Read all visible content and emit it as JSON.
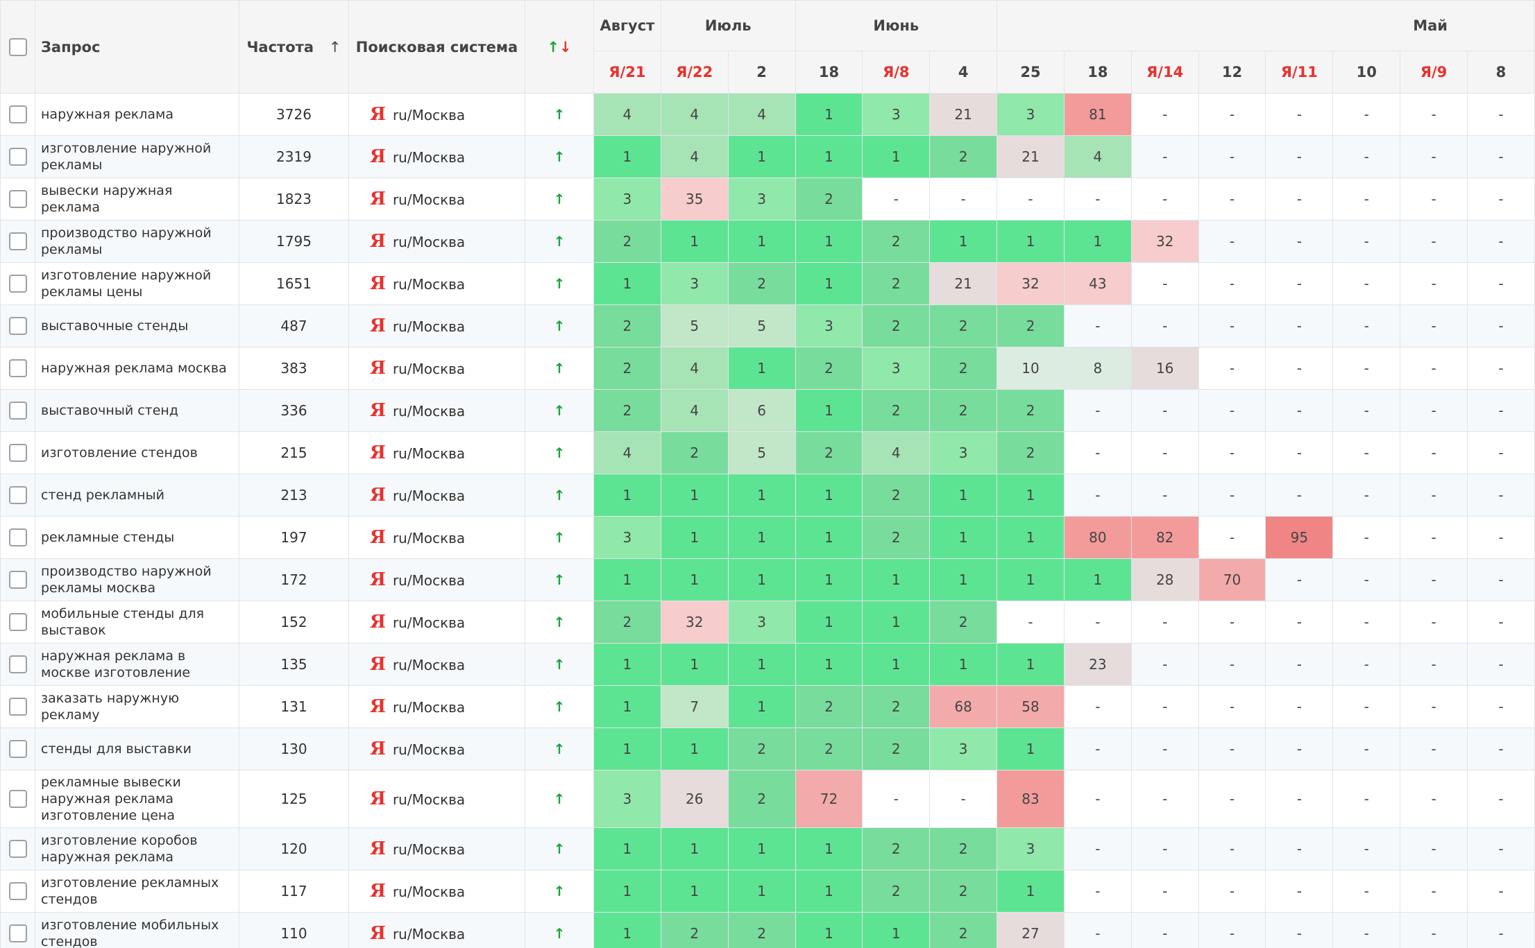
{
  "header": {
    "query": "Запрос",
    "frequency": "Частота",
    "sort_arrow": "↑",
    "engine": "Поисковая система",
    "trend_up": "↑",
    "trend_down": "↓",
    "months": [
      "Август",
      "Июль",
      "Июнь",
      "Май"
    ],
    "dates": [
      "Я/21",
      "Я/22",
      "2",
      "18",
      "Я/8",
      "4",
      "25",
      "18",
      "Я/14",
      "12",
      "Я/11",
      "10",
      "Я/9",
      "8"
    ]
  },
  "rows": [
    {
      "query": "наружная реклама",
      "frequency": 3726,
      "icon": "Я",
      "region": "ru/Москва",
      "trend": "↑",
      "positions": [
        4,
        4,
        4,
        1,
        3,
        21,
        3,
        81,
        "-",
        "-",
        "-",
        "-",
        "-",
        "-"
      ]
    },
    {
      "query": "изготовление наружной рекламы",
      "frequency": 2319,
      "icon": "Я",
      "region": "ru/Москва",
      "trend": "↑",
      "positions": [
        1,
        4,
        1,
        1,
        1,
        2,
        21,
        4,
        "-",
        "-",
        "-",
        "-",
        "-",
        "-"
      ]
    },
    {
      "query": "вывески наружная реклама",
      "frequency": 1823,
      "icon": "Я",
      "region": "ru/Москва",
      "trend": "↑",
      "positions": [
        3,
        35,
        3,
        2,
        "-",
        "-",
        "-",
        "-",
        "-",
        "-",
        "-",
        "-",
        "-",
        "-"
      ]
    },
    {
      "query": "производство наружной рекламы",
      "frequency": 1795,
      "icon": "Я",
      "region": "ru/Москва",
      "trend": "↑",
      "positions": [
        2,
        1,
        1,
        1,
        2,
        1,
        1,
        1,
        32,
        "-",
        "-",
        "-",
        "-",
        "-"
      ]
    },
    {
      "query": "изготовление наружной рекламы цены",
      "frequency": 1651,
      "icon": "Я",
      "region": "ru/Москва",
      "trend": "↑",
      "positions": [
        1,
        3,
        2,
        1,
        2,
        21,
        32,
        43,
        "-",
        "-",
        "-",
        "-",
        "-",
        "-"
      ]
    },
    {
      "query": "выставочные стенды",
      "frequency": 487,
      "icon": "Я",
      "region": "ru/Москва",
      "trend": "↑",
      "positions": [
        2,
        5,
        5,
        3,
        2,
        2,
        2,
        "-",
        "-",
        "-",
        "-",
        "-",
        "-",
        "-"
      ]
    },
    {
      "query": "наружная реклама москва",
      "frequency": 383,
      "icon": "Я",
      "region": "ru/Москва",
      "trend": "↑",
      "positions": [
        2,
        4,
        1,
        2,
        3,
        2,
        10,
        8,
        16,
        "-",
        "-",
        "-",
        "-",
        "-"
      ]
    },
    {
      "query": "выставочный стенд",
      "frequency": 336,
      "icon": "Я",
      "region": "ru/Москва",
      "trend": "↑",
      "positions": [
        2,
        4,
        6,
        1,
        2,
        2,
        2,
        "-",
        "-",
        "-",
        "-",
        "-",
        "-",
        "-"
      ]
    },
    {
      "query": "изготовление стендов",
      "frequency": 215,
      "icon": "Я",
      "region": "ru/Москва",
      "trend": "↑",
      "positions": [
        4,
        2,
        5,
        2,
        4,
        3,
        2,
        "-",
        "-",
        "-",
        "-",
        "-",
        "-",
        "-"
      ]
    },
    {
      "query": "стенд рекламный",
      "frequency": 213,
      "icon": "Я",
      "region": "ru/Москва",
      "trend": "↑",
      "positions": [
        1,
        1,
        1,
        1,
        2,
        1,
        1,
        "-",
        "-",
        "-",
        "-",
        "-",
        "-",
        "-"
      ]
    },
    {
      "query": "рекламные стенды",
      "frequency": 197,
      "icon": "Я",
      "region": "ru/Москва",
      "trend": "↑",
      "positions": [
        3,
        1,
        1,
        1,
        2,
        1,
        1,
        80,
        82,
        "-",
        95,
        "-",
        "-",
        "-"
      ]
    },
    {
      "query": "производство наружной рекламы москва",
      "frequency": 172,
      "icon": "Я",
      "region": "ru/Москва",
      "trend": "↑",
      "positions": [
        1,
        1,
        1,
        1,
        1,
        1,
        1,
        1,
        28,
        70,
        "-",
        "-",
        "-",
        "-"
      ]
    },
    {
      "query": "мобильные стенды для выставок",
      "frequency": 152,
      "icon": "Я",
      "region": "ru/Москва",
      "trend": "↑",
      "positions": [
        2,
        32,
        3,
        1,
        1,
        2,
        "-",
        "-",
        "-",
        "-",
        "-",
        "-",
        "-",
        "-"
      ]
    },
    {
      "query": "наружная реклама в москве изготовление",
      "frequency": 135,
      "icon": "Я",
      "region": "ru/Москва",
      "trend": "↑",
      "positions": [
        1,
        1,
        1,
        1,
        1,
        1,
        1,
        23,
        "-",
        "-",
        "-",
        "-",
        "-",
        "-"
      ]
    },
    {
      "query": "заказать наружную рекламу",
      "frequency": 131,
      "icon": "Я",
      "region": "ru/Москва",
      "trend": "↑",
      "positions": [
        1,
        7,
        1,
        2,
        2,
        68,
        58,
        "-",
        "-",
        "-",
        "-",
        "-",
        "-",
        "-"
      ]
    },
    {
      "query": "стенды для выставки",
      "frequency": 130,
      "icon": "Я",
      "region": "ru/Москва",
      "trend": "↑",
      "positions": [
        1,
        1,
        2,
        2,
        2,
        3,
        1,
        "-",
        "-",
        "-",
        "-",
        "-",
        "-",
        "-"
      ]
    },
    {
      "query": "рекламные вывески наружная реклама изготовление цена",
      "frequency": 125,
      "icon": "Я",
      "region": "ru/Москва",
      "trend": "↑",
      "positions": [
        3,
        26,
        2,
        72,
        "-",
        "-",
        83,
        "-",
        "-",
        "-",
        "-",
        "-",
        "-",
        "-"
      ]
    },
    {
      "query": "изготовление коробов наружная реклама",
      "frequency": 120,
      "icon": "Я",
      "region": "ru/Москва",
      "trend": "↑",
      "positions": [
        1,
        1,
        1,
        1,
        2,
        2,
        3,
        "-",
        "-",
        "-",
        "-",
        "-",
        "-",
        "-"
      ]
    },
    {
      "query": "изготовление рекламных стендов",
      "frequency": 117,
      "icon": "Я",
      "region": "ru/Москва",
      "trend": "↑",
      "positions": [
        1,
        1,
        1,
        1,
        2,
        2,
        1,
        "-",
        "-",
        "-",
        "-",
        "-",
        "-",
        "-"
      ]
    },
    {
      "query": "изготовление мобильных стендов",
      "frequency": 110,
      "icon": "Я",
      "region": "ru/Москва",
      "trend": "↑",
      "positions": [
        1,
        2,
        2,
        1,
        1,
        2,
        27,
        "-",
        "-",
        "-",
        "-",
        "-",
        "-",
        "-"
      ]
    }
  ]
}
